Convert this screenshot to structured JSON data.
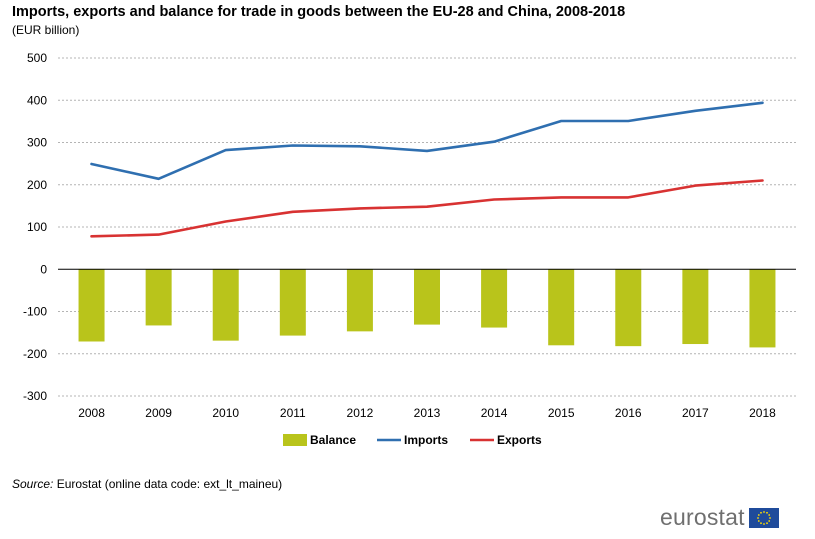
{
  "header": {
    "title": "Imports, exports and balance for trade in goods between the EU-28 and China, 2008-2018",
    "subtitle": "(EUR billion)"
  },
  "source": {
    "label": "Source:",
    "text": "Eurostat (online data code: ext_lt_maineu)"
  },
  "logo": {
    "text": "eurostat"
  },
  "chart_data": {
    "type": "bar",
    "title": "Imports, exports and balance for trade in goods between the EU-28 and China, 2008-2018",
    "ylabel": "(EUR billion)",
    "ylim": [
      -300,
      500
    ],
    "yticks": [
      500,
      400,
      300,
      200,
      100,
      0,
      -100,
      -200,
      -300
    ],
    "grid": true,
    "legend_position": "bottom",
    "categories": [
      "2008",
      "2009",
      "2010",
      "2011",
      "2012",
      "2013",
      "2014",
      "2015",
      "2016",
      "2017",
      "2018"
    ],
    "series": [
      {
        "name": "Balance",
        "type": "bar",
        "color": "#b9c41b",
        "values": [
          -171,
          -133,
          -169,
          -157,
          -147,
          -131,
          -138,
          -180,
          -182,
          -177,
          -185
        ]
      },
      {
        "name": "Imports",
        "type": "line",
        "color": "#2f6fb0",
        "values": [
          249,
          214,
          282,
          293,
          291,
          280,
          302,
          351,
          351,
          375,
          394
        ]
      },
      {
        "name": "Exports",
        "type": "line",
        "color": "#d83232",
        "values": [
          78,
          82,
          113,
          136,
          144,
          148,
          165,
          170,
          170,
          198,
          210
        ]
      }
    ]
  }
}
